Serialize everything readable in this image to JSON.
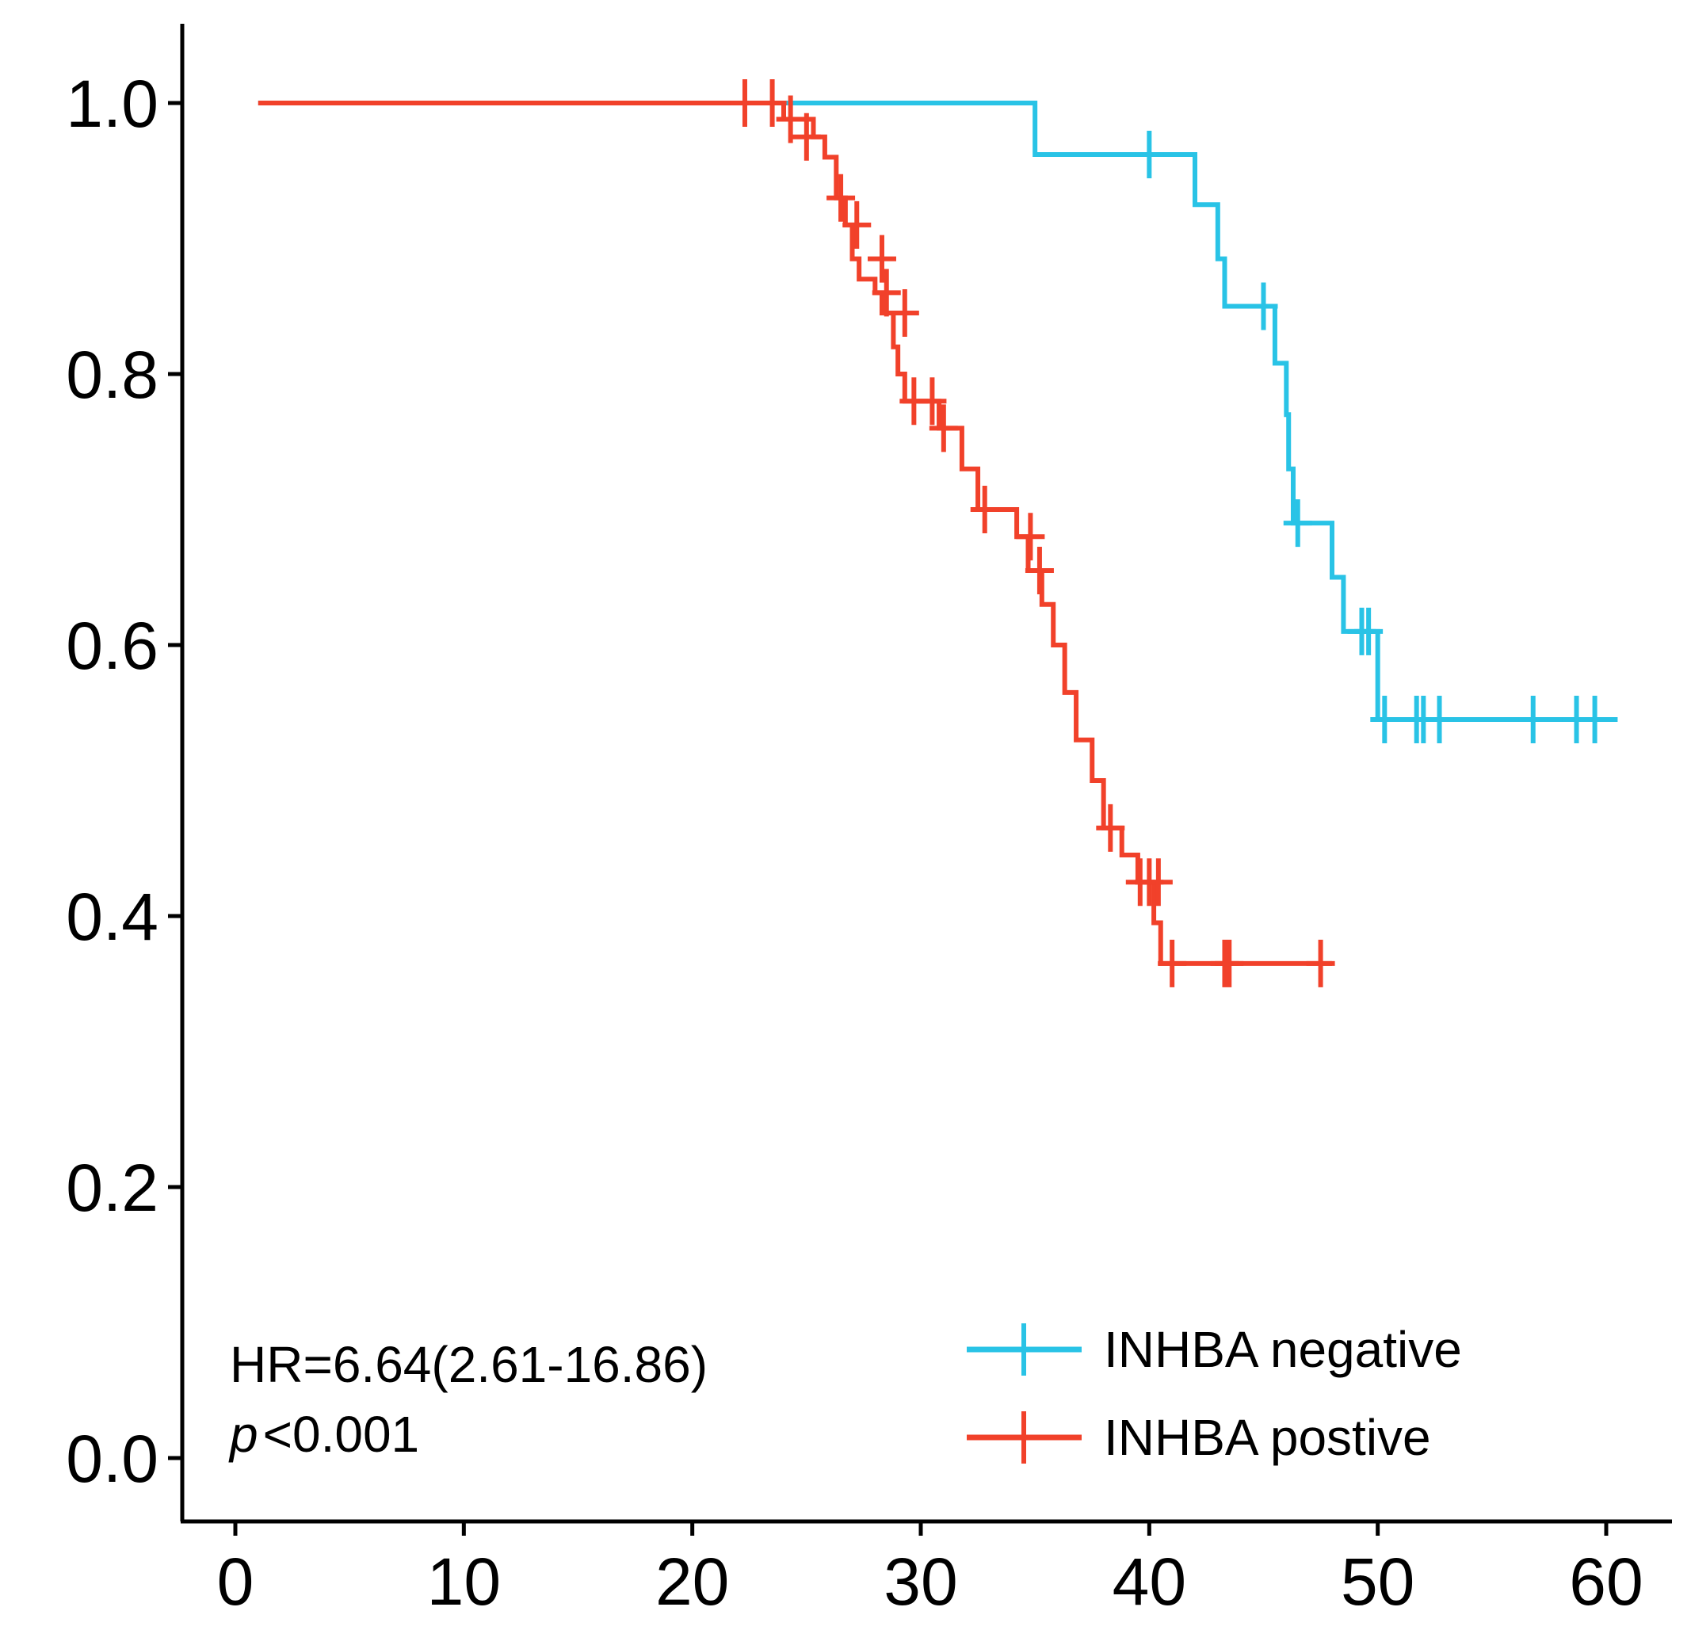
{
  "chart_data": {
    "type": "line",
    "subtype": "kaplan-meier",
    "title": "",
    "xlabel": "",
    "ylabel": "",
    "xlim": [
      -2.5,
      63
    ],
    "ylim": [
      -0.05,
      1.04
    ],
    "xticks": [
      0,
      10,
      20,
      30,
      40,
      50,
      60
    ],
    "xtick_labels": [
      "0",
      "10",
      "20",
      "30",
      "40",
      "50",
      "60"
    ],
    "yticks": [
      0.0,
      0.2,
      0.4,
      0.6,
      0.8,
      1.0
    ],
    "ytick_labels": [
      "0.0",
      "0.2",
      "0.4",
      "0.6",
      "0.8",
      "1.0"
    ],
    "grid": false,
    "legend_position": "bottom-right",
    "annotations": {
      "hr": "HR=6.64(2.61-16.86)",
      "p_symbol": "p",
      "p_rest": "<0.001"
    },
    "series": [
      {
        "name": "INHBA negative",
        "color": "#29c3e6",
        "steps": [
          [
            1,
            1.0
          ],
          [
            35,
            0.962
          ],
          [
            42,
            0.925
          ],
          [
            43,
            0.885
          ],
          [
            43.3,
            0.85
          ],
          [
            45.5,
            0.808
          ],
          [
            46,
            0.77
          ],
          [
            46.1,
            0.73
          ],
          [
            46.3,
            0.69
          ],
          [
            48,
            0.65
          ],
          [
            48.5,
            0.61
          ],
          [
            50,
            0.545
          ],
          [
            60.5,
            0.545
          ]
        ],
        "censors": [
          [
            40,
            0.962
          ],
          [
            45,
            0.85
          ],
          [
            46.5,
            0.69
          ],
          [
            49.3,
            0.61
          ],
          [
            49.6,
            0.61
          ],
          [
            50.3,
            0.545
          ],
          [
            51.7,
            0.545
          ],
          [
            52,
            0.545
          ],
          [
            52.7,
            0.545
          ],
          [
            56.8,
            0.545
          ],
          [
            58.7,
            0.545
          ],
          [
            59.5,
            0.545
          ]
        ]
      },
      {
        "name": "INHBA postive",
        "color": "#f1412a",
        "steps": [
          [
            1,
            1.0
          ],
          [
            24,
            0.988
          ],
          [
            25.3,
            0.975
          ],
          [
            25.8,
            0.96
          ],
          [
            26.3,
            0.93
          ],
          [
            26.7,
            0.91
          ],
          [
            27,
            0.885
          ],
          [
            27.3,
            0.87
          ],
          [
            28,
            0.86
          ],
          [
            28.3,
            0.845
          ],
          [
            28.8,
            0.82
          ],
          [
            29,
            0.8
          ],
          [
            29.3,
            0.78
          ],
          [
            30.8,
            0.76
          ],
          [
            31.8,
            0.73
          ],
          [
            32.5,
            0.7
          ],
          [
            34.2,
            0.68
          ],
          [
            34.7,
            0.655
          ],
          [
            35.3,
            0.63
          ],
          [
            35.8,
            0.6
          ],
          [
            36.3,
            0.565
          ],
          [
            36.8,
            0.53
          ],
          [
            37.5,
            0.5
          ],
          [
            38,
            0.465
          ],
          [
            38.8,
            0.445
          ],
          [
            39.5,
            0.425
          ],
          [
            40.2,
            0.395
          ],
          [
            40.5,
            0.365
          ],
          [
            48,
            0.365
          ]
        ],
        "censors": [
          [
            22.3,
            1.0
          ],
          [
            23.5,
            1.0
          ],
          [
            24.3,
            0.988
          ],
          [
            25,
            0.975
          ],
          [
            26.5,
            0.93
          ],
          [
            27.2,
            0.91
          ],
          [
            28.3,
            0.885
          ],
          [
            28.5,
            0.86
          ],
          [
            29.3,
            0.845
          ],
          [
            29.7,
            0.78
          ],
          [
            30.5,
            0.78
          ],
          [
            31,
            0.76
          ],
          [
            32.8,
            0.7
          ],
          [
            34.8,
            0.68
          ],
          [
            35.2,
            0.655
          ],
          [
            38.3,
            0.465
          ],
          [
            39.6,
            0.425
          ],
          [
            40,
            0.425
          ],
          [
            40.4,
            0.425
          ],
          [
            41,
            0.365
          ],
          [
            43.3,
            0.365
          ],
          [
            43.5,
            0.365
          ],
          [
            47.5,
            0.365
          ]
        ]
      }
    ]
  }
}
